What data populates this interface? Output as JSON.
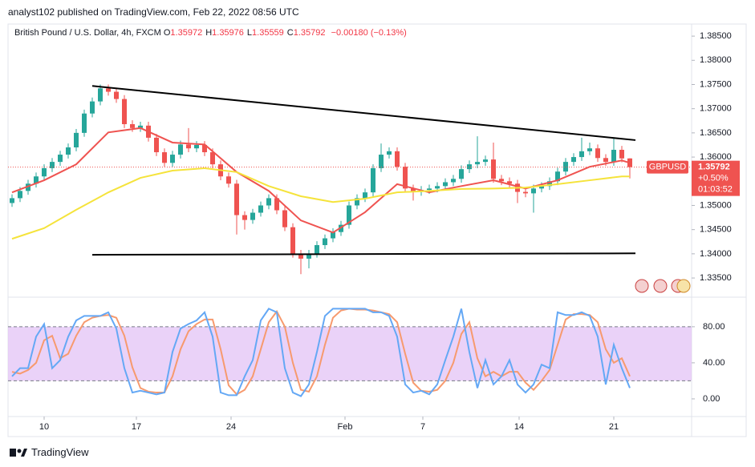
{
  "header": {
    "published": "analyst102 published on TradingView.com, Feb 22, 2022 08:56 UTC"
  },
  "chart_data": [
    {
      "type": "candlestick",
      "title": "British Pound / U.S. Dollar, 4h, FXCM",
      "ohlc": [
        {
          "label": "O",
          "value": 1.35972
        },
        {
          "label": "H",
          "value": 1.35976
        },
        {
          "label": "L",
          "value": 1.35559
        },
        {
          "label": "C",
          "value": 1.35792
        }
      ],
      "change": "−0.00180 (−0.13%)",
      "up_color": "#26a69a",
      "down_color": "#ef5350",
      "open": [
        1.3505,
        1.3515,
        1.353,
        1.3545,
        1.356,
        1.3577,
        1.359,
        1.3605,
        1.362,
        1.365,
        1.369,
        1.3715,
        1.3742,
        1.3735,
        1.372,
        1.3668,
        1.366,
        1.3665,
        1.364,
        1.361,
        1.3588,
        1.3605,
        1.3626,
        1.3618,
        1.3625,
        1.361,
        1.3585,
        1.356,
        1.3545,
        1.348,
        1.347,
        1.3485,
        1.35,
        1.3515,
        1.349,
        1.3455,
        1.34,
        1.339,
        1.34,
        1.3418,
        1.3432,
        1.3445,
        1.346,
        1.35,
        1.3515,
        1.3527,
        1.3577,
        1.3605,
        1.3612,
        1.358,
        1.3535,
        1.3528,
        1.3532,
        1.3535,
        1.354,
        1.3548,
        1.3555,
        1.3575,
        1.3585,
        1.359,
        1.3595,
        1.3555,
        1.355,
        1.3545,
        1.3528,
        1.3525,
        1.3535,
        1.354,
        1.355,
        1.357,
        1.359,
        1.36,
        1.3612,
        1.3618,
        1.3598,
        1.359,
        1.3615,
        1.35972
      ],
      "high": [
        1.3523,
        1.3538,
        1.3553,
        1.3568,
        1.3585,
        1.3598,
        1.3613,
        1.3628,
        1.3658,
        1.3698,
        1.3723,
        1.375,
        1.375,
        1.3743,
        1.3728,
        1.3676,
        1.3673,
        1.3673,
        1.3648,
        1.3618,
        1.3613,
        1.3634,
        1.366,
        1.3633,
        1.3633,
        1.3618,
        1.3593,
        1.3568,
        1.3553,
        1.3488,
        1.3493,
        1.3508,
        1.3523,
        1.3523,
        1.3498,
        1.3463,
        1.3408,
        1.3408,
        1.3426,
        1.344,
        1.3453,
        1.3468,
        1.3508,
        1.3523,
        1.3535,
        1.3585,
        1.3628,
        1.362,
        1.362,
        1.3588,
        1.3543,
        1.354,
        1.3543,
        1.3548,
        1.3556,
        1.3563,
        1.3583,
        1.3593,
        1.3643,
        1.3603,
        1.363,
        1.3563,
        1.3558,
        1.3553,
        1.3536,
        1.3543,
        1.3548,
        1.3558,
        1.3578,
        1.3598,
        1.3608,
        1.364,
        1.363,
        1.3626,
        1.3606,
        1.3638,
        1.3623,
        1.35976
      ],
      "low": [
        1.3497,
        1.3507,
        1.3522,
        1.3537,
        1.3552,
        1.3569,
        1.3582,
        1.3597,
        1.3612,
        1.3642,
        1.3682,
        1.3707,
        1.3727,
        1.3712,
        1.366,
        1.3652,
        1.3652,
        1.3632,
        1.3602,
        1.358,
        1.358,
        1.3597,
        1.361,
        1.361,
        1.3602,
        1.3577,
        1.3552,
        1.3537,
        1.344,
        1.345,
        1.3462,
        1.3477,
        1.3492,
        1.3482,
        1.3447,
        1.3392,
        1.3358,
        1.337,
        1.3392,
        1.341,
        1.3424,
        1.3437,
        1.3452,
        1.3492,
        1.3507,
        1.3519,
        1.3569,
        1.3597,
        1.3572,
        1.3527,
        1.351,
        1.352,
        1.3524,
        1.3527,
        1.3532,
        1.354,
        1.3547,
        1.3567,
        1.3577,
        1.3582,
        1.3547,
        1.3542,
        1.3537,
        1.3505,
        1.3517,
        1.3485,
        1.3527,
        1.3532,
        1.3542,
        1.3562,
        1.3582,
        1.3592,
        1.3604,
        1.359,
        1.3582,
        1.3582,
        1.35892,
        1.35559
      ],
      "close": [
        1.3515,
        1.353,
        1.3545,
        1.356,
        1.3577,
        1.359,
        1.3605,
        1.362,
        1.365,
        1.369,
        1.3715,
        1.3742,
        1.3735,
        1.372,
        1.3668,
        1.366,
        1.3665,
        1.364,
        1.361,
        1.3588,
        1.3605,
        1.3626,
        1.3618,
        1.3625,
        1.361,
        1.3585,
        1.356,
        1.3545,
        1.348,
        1.347,
        1.3485,
        1.35,
        1.3515,
        1.349,
        1.3455,
        1.34,
        1.339,
        1.34,
        1.3418,
        1.3432,
        1.3445,
        1.346,
        1.35,
        1.3515,
        1.3527,
        1.3577,
        1.3605,
        1.3612,
        1.358,
        1.3535,
        1.3528,
        1.3532,
        1.3535,
        1.354,
        1.3548,
        1.3555,
        1.3575,
        1.3585,
        1.359,
        1.3595,
        1.3555,
        1.355,
        1.3545,
        1.3528,
        1.3525,
        1.3535,
        1.354,
        1.355,
        1.357,
        1.359,
        1.36,
        1.3612,
        1.3618,
        1.3598,
        1.359,
        1.3615,
        1.35972,
        1.35792
      ],
      "xlim": [
        -0.5,
        84.7
      ],
      "xticks": [
        {
          "value": 4,
          "label": "10"
        },
        {
          "value": 15.5,
          "label": "17"
        },
        {
          "value": 27.3,
          "label": "24"
        },
        {
          "value": 41.5,
          "label": "Feb"
        },
        {
          "value": 51.2,
          "label": "7"
        },
        {
          "value": 63.2,
          "label": "14"
        },
        {
          "value": 75,
          "label": "21"
        }
      ],
      "ylim": [
        1.3312,
        1.3875
      ],
      "yticks": [
        {
          "value": 1.385,
          "label": "1.38500"
        },
        {
          "value": 1.38,
          "label": "1.38000"
        },
        {
          "value": 1.375,
          "label": "1.37500"
        },
        {
          "value": 1.37,
          "label": "1.37000"
        },
        {
          "value": 1.365,
          "label": "1.36500"
        },
        {
          "value": 1.36,
          "label": "1.36000"
        },
        {
          "value": 1.355,
          "label": "1.35500"
        },
        {
          "value": 1.35,
          "label": "1.35000"
        },
        {
          "value": 1.345,
          "label": "1.34500"
        },
        {
          "value": 1.34,
          "label": "1.34000"
        },
        {
          "value": 1.335,
          "label": "1.33500"
        }
      ],
      "lines": [
        {
          "color": "#ef5350",
          "x": [
            0,
            4,
            8,
            12,
            16,
            20,
            24,
            28,
            32,
            36,
            40,
            44,
            48,
            52,
            56,
            60,
            64,
            68,
            72,
            76,
            77
          ],
          "values": [
            1.3527,
            1.3552,
            1.3585,
            1.3651,
            1.366,
            1.363,
            1.3626,
            1.3569,
            1.353,
            1.3469,
            1.3444,
            1.3486,
            1.3544,
            1.3527,
            1.354,
            1.3552,
            1.3535,
            1.3552,
            1.358,
            1.3593,
            1.3588
          ]
        },
        {
          "color": "#f5e33b",
          "x": [
            0,
            4,
            8,
            12,
            16,
            20,
            24,
            28,
            32,
            36,
            40,
            44,
            48,
            52,
            56,
            60,
            64,
            68,
            72,
            76,
            77
          ],
          "values": [
            1.3431,
            1.3453,
            1.3491,
            1.3527,
            1.3557,
            1.3572,
            1.3577,
            1.3569,
            1.354,
            1.3519,
            1.3507,
            1.3514,
            1.3527,
            1.353,
            1.3534,
            1.3535,
            1.3537,
            1.3544,
            1.3552,
            1.356,
            1.356
          ]
        }
      ],
      "trendlines": [
        {
          "color": "#000000",
          "x": [
            10,
            77.7
          ],
          "values": [
            1.3747,
            1.3635
          ]
        },
        {
          "color": "#000000",
          "x": [
            10,
            77.7
          ],
          "values": [
            1.3398,
            1.3401
          ]
        }
      ],
      "price_tag": {
        "symbol": "GBPUSD",
        "price": 1.35792,
        "change": "+0.50%",
        "countdown": "01:03:52",
        "color": "#ef5350"
      }
    },
    {
      "type": "line",
      "xlim": [
        -0.5,
        84.7
      ],
      "ylim": [
        -19.6,
        111
      ],
      "yticks": [
        {
          "value": 80,
          "label": "80.00"
        },
        {
          "value": 40,
          "label": "40.00"
        },
        {
          "value": 0,
          "label": "0.00"
        }
      ],
      "band": [
        20,
        80
      ],
      "band_color": "#e1bff5",
      "series": [
        {
          "color": "#64a8f5",
          "values": [
            25,
            34,
            34,
            69,
            83,
            34,
            43,
            69,
            87,
            92,
            92,
            92,
            96,
            78,
            34,
            7,
            9,
            7,
            5,
            7,
            52,
            78,
            83,
            87,
            96,
            69,
            7,
            4,
            4,
            25,
            43,
            87,
            100,
            96,
            34,
            7,
            3,
            16,
            52,
            92,
            100,
            100,
            100,
            100,
            100,
            96,
            96,
            92,
            69,
            16,
            7,
            9,
            5,
            16,
            43,
            69,
            100,
            52,
            12,
            43,
            16,
            25,
            43,
            16,
            7,
            16,
            38,
            34,
            96,
            93,
            93,
            96,
            92,
            69,
            16,
            60,
            34,
            12
          ]
        },
        {
          "color": "#f79a6e",
          "values": [
            30,
            28,
            32,
            40,
            65,
            70,
            45,
            50,
            70,
            85,
            90,
            92,
            93,
            90,
            70,
            35,
            12,
            8,
            7,
            7,
            25,
            55,
            75,
            83,
            88,
            88,
            55,
            15,
            5,
            10,
            25,
            55,
            85,
            97,
            80,
            40,
            10,
            8,
            25,
            60,
            90,
            98,
            100,
            99,
            99,
            98,
            96,
            94,
            85,
            50,
            18,
            9,
            8,
            10,
            20,
            40,
            72,
            85,
            45,
            25,
            30,
            25,
            30,
            30,
            18,
            10,
            20,
            32,
            60,
            88,
            94,
            94,
            93,
            85,
            55,
            40,
            45,
            25
          ]
        }
      ]
    }
  ],
  "footer": {
    "brand": "TradingView"
  }
}
